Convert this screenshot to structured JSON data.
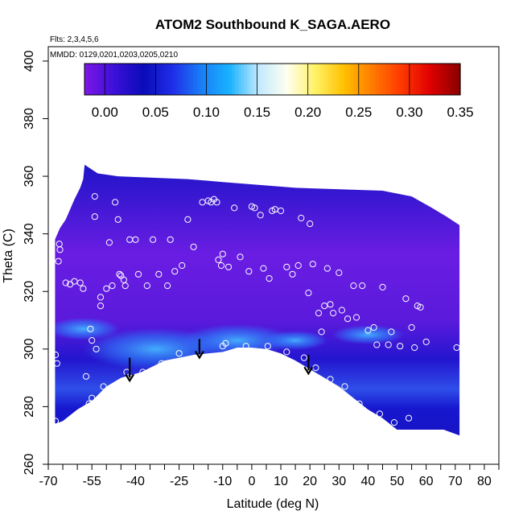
{
  "chart_data": {
    "type": "heatmap",
    "title": "ATOM2 Southbound K_SAGA.AERO",
    "subtitle_flights": "Flts: 2,3,4,5,6",
    "subtitle_dates": "MMDD: 0129,0201,0203,0205,0210",
    "xlabel": "Latitude (deg N)",
    "ylabel": "Theta (C)",
    "xlim": [
      -70,
      85
    ],
    "ylim": [
      260,
      405
    ],
    "x_ticks": [
      -70,
      -55,
      -40,
      -25,
      -10,
      0,
      10,
      20,
      30,
      40,
      50,
      60,
      70,
      80
    ],
    "y_ticks": [
      260,
      280,
      300,
      320,
      340,
      360,
      380,
      400
    ],
    "colorbar": {
      "min": -0.02,
      "max": 0.35,
      "ticks": [
        0.0,
        0.05,
        0.1,
        0.15,
        0.2,
        0.25,
        0.3,
        0.35
      ],
      "tick_labels": [
        "0.00",
        "0.05",
        "0.10",
        "0.15",
        "0.20",
        "0.25",
        "0.30",
        "0.35"
      ],
      "colors": [
        "#7a17e6",
        "#3a10d8",
        "#0a0bb8",
        "#1f2de8",
        "#1a7cf7",
        "#18b2ff",
        "#bfe9ff",
        "#fffff0",
        "#fff266",
        "#ffc000",
        "#ff7a00",
        "#ff3800",
        "#e00000",
        "#8c0000"
      ]
    },
    "domain_colors": {
      "low": "#6a1de2",
      "mid": "#1717cf",
      "high": "#2f7dfa",
      "peak": "#3aa8ff",
      "ground": "#ffffff"
    },
    "domain_outline": [
      [
        -67.7,
        274
      ],
      [
        -67.7,
        338
      ],
      [
        -66,
        342
      ],
      [
        -64,
        345
      ],
      [
        -61,
        352
      ],
      [
        -59,
        356
      ],
      [
        -58,
        359
      ],
      [
        -57.8,
        361
      ],
      [
        -57.5,
        364
      ],
      [
        -53,
        361
      ],
      [
        -46,
        360
      ],
      [
        -22,
        359
      ],
      [
        -10,
        358
      ],
      [
        15,
        356
      ],
      [
        45,
        355
      ],
      [
        55,
        353
      ],
      [
        62,
        349
      ],
      [
        67,
        346
      ],
      [
        71.5,
        343
      ],
      [
        71.5,
        270
      ],
      [
        66,
        272
      ],
      [
        58,
        272
      ],
      [
        50,
        272
      ],
      [
        45,
        276
      ],
      [
        40,
        279
      ],
      [
        35,
        283
      ],
      [
        30,
        287
      ],
      [
        25,
        290
      ],
      [
        20,
        293
      ],
      [
        15,
        296
      ],
      [
        10,
        298.5
      ],
      [
        5,
        300
      ],
      [
        0,
        300.5
      ],
      [
        -5,
        300.5
      ],
      [
        -10,
        299
      ],
      [
        -20,
        298
      ],
      [
        -30,
        296
      ],
      [
        -38,
        292
      ],
      [
        -45,
        290
      ],
      [
        -50,
        287
      ],
      [
        -55,
        282
      ],
      [
        -60,
        279
      ],
      [
        -65,
        275
      ]
    ],
    "obs_points": [
      [
        -67.5,
        275
      ],
      [
        -67.5,
        298
      ],
      [
        -67,
        295
      ],
      [
        -66.5,
        330.5
      ],
      [
        -66,
        334.5
      ],
      [
        -66.2,
        336.5
      ],
      [
        -64,
        323
      ],
      [
        -62.5,
        322.5
      ],
      [
        -61,
        323.5
      ],
      [
        -59,
        323
      ],
      [
        -58,
        321
      ],
      [
        -57,
        290.5
      ],
      [
        -56,
        281
      ],
      [
        -55,
        283
      ],
      [
        -55.5,
        307
      ],
      [
        -55,
        303
      ],
      [
        -54,
        353
      ],
      [
        -54,
        346
      ],
      [
        -53.5,
        300
      ],
      [
        -52,
        315
      ],
      [
        -52,
        318
      ],
      [
        -51,
        287
      ],
      [
        -50,
        321
      ],
      [
        -49,
        337
      ],
      [
        -48,
        322
      ],
      [
        -47,
        351
      ],
      [
        -46,
        345
      ],
      [
        -45.5,
        326
      ],
      [
        -45,
        325.5
      ],
      [
        -44,
        324
      ],
      [
        -43.5,
        322
      ],
      [
        -43,
        292
      ],
      [
        -42,
        338
      ],
      [
        -40,
        338
      ],
      [
        -39,
        326
      ],
      [
        -37.5,
        292
      ],
      [
        -36,
        322
      ],
      [
        -34,
        338
      ],
      [
        -32,
        326
      ],
      [
        -31,
        295
      ],
      [
        -29,
        322
      ],
      [
        -28,
        338
      ],
      [
        -26.5,
        327
      ],
      [
        -25,
        298.5
      ],
      [
        -24,
        329
      ],
      [
        -22,
        345
      ],
      [
        -20,
        335.5
      ],
      [
        -17,
        351
      ],
      [
        -15,
        351.5
      ],
      [
        -14,
        351
      ],
      [
        -13,
        352
      ],
      [
        -12,
        351
      ],
      [
        -11.5,
        331
      ],
      [
        -10.5,
        329
      ],
      [
        -10,
        333
      ],
      [
        -10,
        301
      ],
      [
        -9,
        302
      ],
      [
        -8,
        328.5
      ],
      [
        -6,
        349
      ],
      [
        -4,
        332
      ],
      [
        -2,
        301
      ],
      [
        0,
        349.5
      ],
      [
        -1,
        327
      ],
      [
        1,
        349
      ],
      [
        3,
        346.5
      ],
      [
        4,
        328
      ],
      [
        5.5,
        301
      ],
      [
        6,
        324.5
      ],
      [
        7,
        348
      ],
      [
        8,
        348.5
      ],
      [
        10,
        348
      ],
      [
        12,
        328.5
      ],
      [
        12,
        299
      ],
      [
        14,
        326
      ],
      [
        16,
        329
      ],
      [
        17,
        345.5
      ],
      [
        18,
        297
      ],
      [
        19.5,
        319.5
      ],
      [
        20,
        343.5
      ],
      [
        21,
        329.5
      ],
      [
        22,
        293.5
      ],
      [
        23,
        312.5
      ],
      [
        24,
        306
      ],
      [
        25,
        315
      ],
      [
        26,
        328
      ],
      [
        27,
        315.5
      ],
      [
        27,
        289.5
      ],
      [
        28,
        312.5
      ],
      [
        30,
        326.5
      ],
      [
        31,
        313.5
      ],
      [
        32,
        287
      ],
      [
        33,
        310.5
      ],
      [
        35,
        322
      ],
      [
        36,
        311
      ],
      [
        37,
        281
      ],
      [
        38,
        322
      ],
      [
        40,
        306.5
      ],
      [
        42,
        307.5
      ],
      [
        43,
        301.5
      ],
      [
        44,
        277.5
      ],
      [
        45,
        321.5
      ],
      [
        47,
        301.5
      ],
      [
        48,
        306
      ],
      [
        49,
        274.5
      ],
      [
        51,
        301
      ],
      [
        53,
        317.5
      ],
      [
        54,
        276
      ],
      [
        55,
        307.5
      ],
      [
        56,
        300.5
      ],
      [
        57,
        315
      ],
      [
        58,
        314.5
      ],
      [
        60,
        302.5
      ],
      [
        65,
        356
      ],
      [
        70.5,
        300.5
      ]
    ],
    "arrows": [
      {
        "lat": -42,
        "theta_top": 297,
        "theta_tip": 289
      },
      {
        "lat": -18,
        "theta_top": 303.5,
        "theta_tip": 297
      },
      {
        "lat": 19.5,
        "theta_top": 298,
        "theta_tip": 291.5
      }
    ]
  }
}
